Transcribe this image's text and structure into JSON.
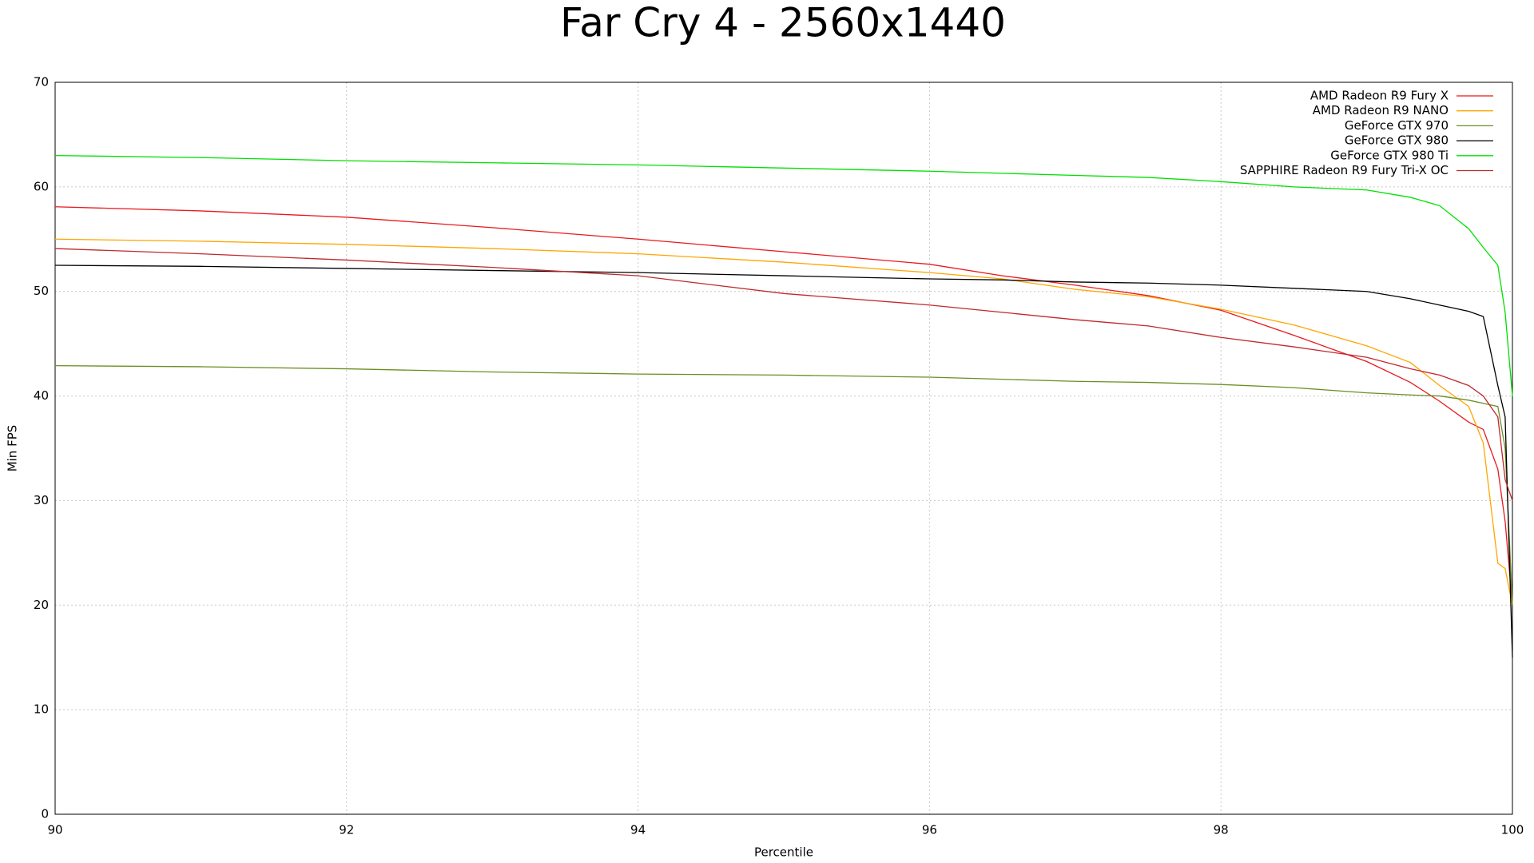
{
  "chart_data": {
    "type": "line",
    "title": "Far Cry 4 - 2560x1440",
    "x_label": "Percentile",
    "y_label": "Min FPS",
    "x": [
      90,
      91,
      92,
      93,
      94,
      95,
      96,
      96.5,
      97,
      97.5,
      98,
      98.5,
      99,
      99.3,
      99.5,
      99.7,
      99.8,
      99.9,
      99.95,
      100
    ],
    "series": [
      {
        "name": "AMD Radeon R9 Fury X",
        "color": "#e8191e",
        "values": [
          58.1,
          57.7,
          57.1,
          56.1,
          55.0,
          53.8,
          52.6,
          51.5,
          50.6,
          49.6,
          48.2,
          45.8,
          43.3,
          41.3,
          39.5,
          37.5,
          36.8,
          33,
          28,
          20
        ]
      },
      {
        "name": "AMD Radeon R9 NANO",
        "color": "#ffa500",
        "values": [
          55.0,
          54.8,
          54.5,
          54.1,
          53.6,
          52.8,
          51.8,
          51.2,
          50.2,
          49.5,
          48.3,
          46.8,
          44.8,
          43.2,
          41,
          39,
          35.5,
          24,
          23.5,
          20
        ]
      },
      {
        "name": "GeForce GTX 970",
        "color": "#6b8e23",
        "values": [
          42.9,
          42.8,
          42.6,
          42.3,
          42.1,
          42.0,
          41.8,
          41.6,
          41.4,
          41.3,
          41.1,
          40.8,
          40.3,
          40.1,
          40.0,
          39.6,
          39.3,
          39,
          35,
          20
        ]
      },
      {
        "name": "GeForce GTX 980",
        "color": "#000000",
        "values": [
          52.5,
          52.4,
          52.2,
          52.0,
          51.8,
          51.5,
          51.2,
          51.1,
          50.9,
          50.8,
          50.6,
          50.3,
          50.0,
          49.3,
          48.7,
          48.1,
          47.6,
          41,
          38,
          15
        ]
      },
      {
        "name": "GeForce GTX 980 Ti",
        "color": "#00e000",
        "values": [
          63,
          62.8,
          62.5,
          62.3,
          62.1,
          61.8,
          61.5,
          61.3,
          61.1,
          60.9,
          60.5,
          60.0,
          59.7,
          59,
          58.2,
          56,
          54.2,
          52.5,
          48,
          40
        ]
      },
      {
        "name": "SAPPHIRE Radeon R9 Fury Tri-X OC",
        "color": "#c0282d",
        "values": [
          54.1,
          53.6,
          53.0,
          52.3,
          51.5,
          49.8,
          48.7,
          48.0,
          47.3,
          46.7,
          45.6,
          44.7,
          43.7,
          42.6,
          42,
          41,
          40,
          38,
          32,
          30
        ]
      }
    ],
    "xlim": [
      90,
      100
    ],
    "xticks": [
      90,
      92,
      94,
      96,
      98,
      100
    ],
    "ylim": [
      0,
      70
    ],
    "yticks": [
      0,
      10,
      20,
      30,
      40,
      50,
      60,
      70
    ],
    "grid": true,
    "legend": "top-right"
  }
}
